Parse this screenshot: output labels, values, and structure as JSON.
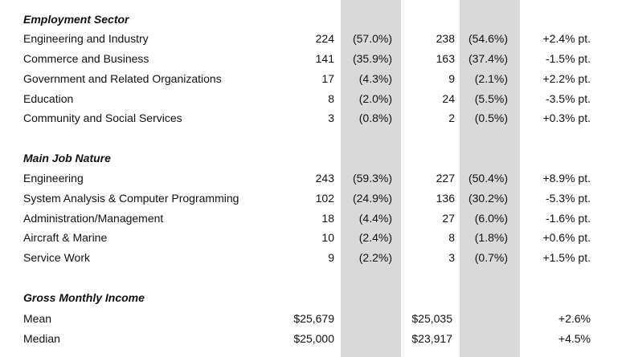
{
  "sections": [
    {
      "title": "Employment Sector",
      "rows": [
        {
          "label": "Engineering and Industry",
          "n1": "224",
          "p1": "(57.0%)",
          "n2": "238",
          "p2": "(54.6%)",
          "chg": "+2.4% pt."
        },
        {
          "label": "Commerce and Business",
          "n1": "141",
          "p1": "(35.9%)",
          "n2": "163",
          "p2": "(37.4%)",
          "chg": "-1.5% pt."
        },
        {
          "label": "Government and Related Organizations",
          "n1": "17",
          "p1": "(4.3%)",
          "n2": "9",
          "p2": "(2.1%)",
          "chg": "+2.2% pt."
        },
        {
          "label": "Education",
          "n1": "8",
          "p1": "(2.0%)",
          "n2": "24",
          "p2": "(5.5%)",
          "chg": "-3.5% pt."
        },
        {
          "label": "Community and Social Services",
          "n1": "3",
          "p1": "(0.8%)",
          "n2": "2",
          "p2": "(0.5%)",
          "chg": "+0.3% pt."
        }
      ]
    },
    {
      "title": "Main Job Nature",
      "rows": [
        {
          "label": "Engineering",
          "n1": "243",
          "p1": "(59.3%)",
          "n2": "227",
          "p2": "(50.4%)",
          "chg": "+8.9% pt."
        },
        {
          "label": "System Analysis & Computer Programming",
          "n1": "102",
          "p1": "(24.9%)",
          "n2": "136",
          "p2": "(30.2%)",
          "chg": "-5.3% pt."
        },
        {
          "label": "Administration/Management",
          "n1": "18",
          "p1": "(4.4%)",
          "n2": "27",
          "p2": "(6.0%)",
          "chg": "-1.6% pt."
        },
        {
          "label": "Aircraft & Marine",
          "n1": "10",
          "p1": "(2.4%)",
          "n2": "8",
          "p2": "(1.8%)",
          "chg": "+0.6% pt."
        },
        {
          "label": "Service Work",
          "n1": "9",
          "p1": "(2.2%)",
          "n2": "3",
          "p2": "(0.7%)",
          "chg": "+1.5% pt."
        }
      ]
    },
    {
      "title": "Gross Monthly Income",
      "rows": [
        {
          "label": "Mean",
          "n1": "$25,679",
          "p1": "",
          "n2": "$25,035",
          "p2": "",
          "chg": "+2.6%"
        },
        {
          "label": "Median",
          "n1": "$25,000",
          "p1": "",
          "n2": "$23,917",
          "p2": "",
          "chg": "+4.5%"
        }
      ]
    }
  ]
}
